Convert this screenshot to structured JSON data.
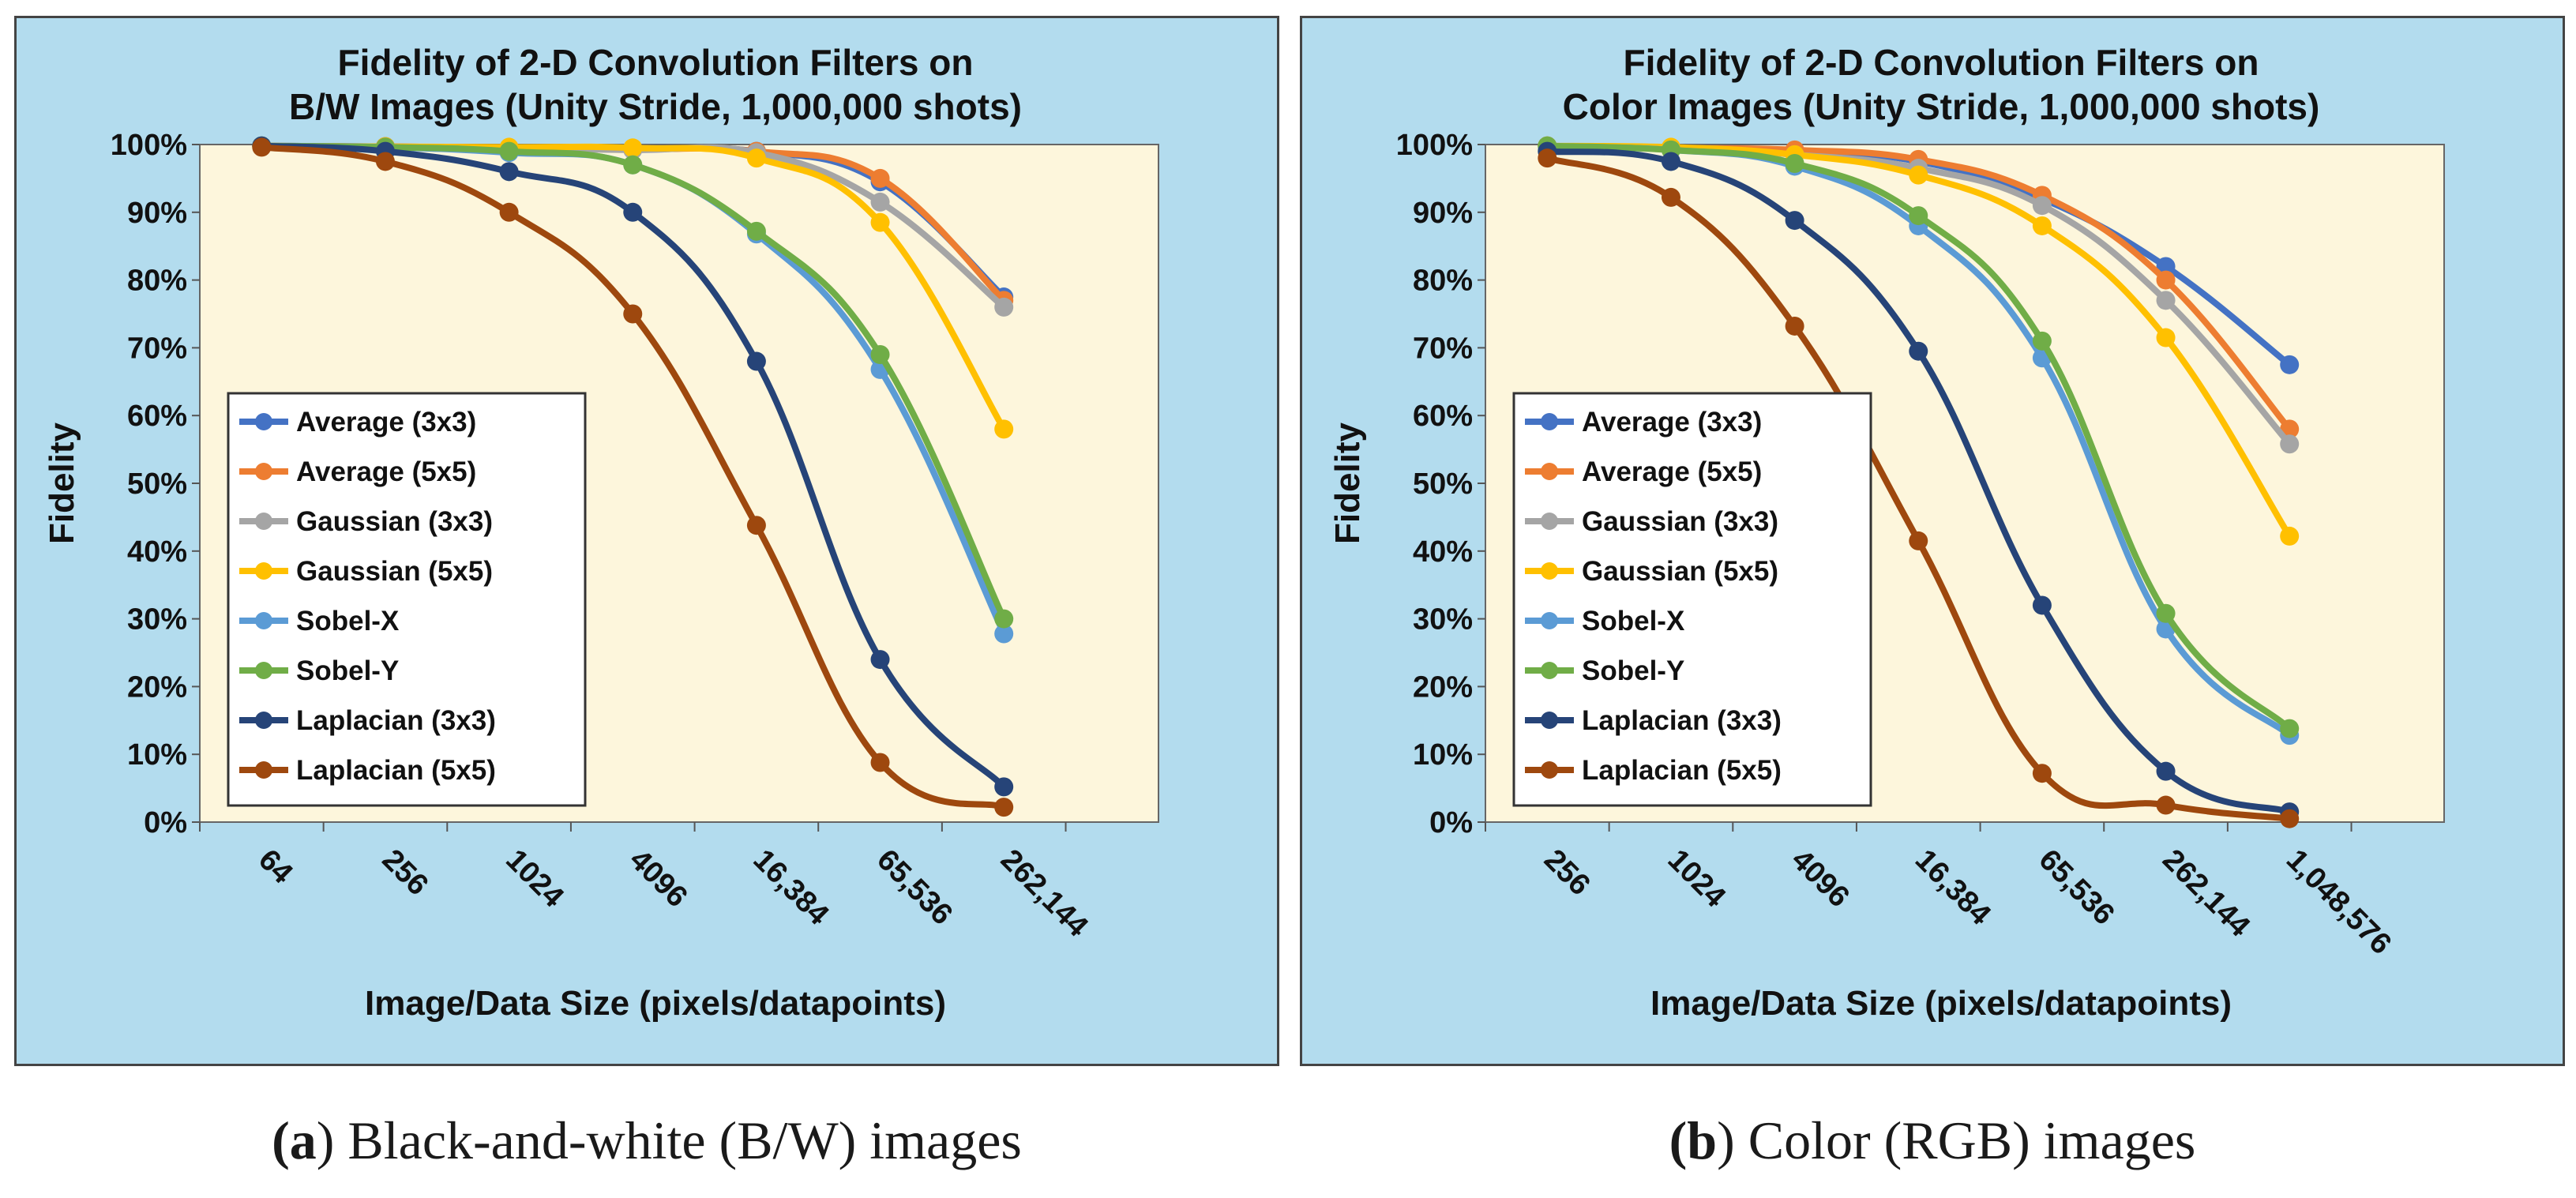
{
  "colors": {
    "Average (3x3)": "#4472c4",
    "Average (5x5)": "#ed7d31",
    "Gaussian (3x3)": "#a5a5a5",
    "Gaussian (5x5)": "#ffc000",
    "Sobel-X": "#5b9bd5",
    "Sobel-Y": "#70ad47",
    "Laplacian (3x3)": "#264478",
    "Laplacian (5x5)": "#9e480e",
    "panel_bg": "#b3dcee",
    "plot_bg": "#fdf6dc"
  },
  "captions": {
    "a_letter": "(a",
    "a_rest": ") Black-and-white (B/W) images",
    "b_letter": "(b",
    "b_rest": ") Color (RGB) images"
  },
  "chart_data": [
    {
      "type": "line",
      "title": [
        "Fidelity of 2-D Convolution Filters on",
        "B/W Images (Unity Stride, 1,000,000 shots)"
      ],
      "xlabel": "Image/Data Size (pixels/datapoints)",
      "ylabel": "Fidelity",
      "ylim": [
        0,
        100
      ],
      "yticks": [
        "0%",
        "10%",
        "20%",
        "30%",
        "40%",
        "50%",
        "60%",
        "70%",
        "80%",
        "90%",
        "100%"
      ],
      "categories": [
        "64",
        "256",
        "1024",
        "4096",
        "16,384",
        "65,536",
        "262,144"
      ],
      "legend_position": "center-left",
      "series": [
        {
          "name": "Average (3x3)",
          "values": [
            99.8,
            99.7,
            99.5,
            99.3,
            99.0,
            94.5,
            77.5
          ]
        },
        {
          "name": "Average (5x5)",
          "values": [
            99.8,
            99.7,
            99.5,
            99.3,
            99.0,
            95.0,
            77.0
          ]
        },
        {
          "name": "Gaussian (3x3)",
          "values": [
            99.8,
            99.6,
            99.4,
            99.2,
            98.8,
            91.5,
            76.0
          ]
        },
        {
          "name": "Gaussian (5x5)",
          "values": [
            99.8,
            99.7,
            99.6,
            99.5,
            98.0,
            88.5,
            58.0
          ]
        },
        {
          "name": "Sobel-X",
          "values": [
            99.8,
            99.6,
            98.8,
            97.0,
            86.8,
            66.8,
            27.8
          ]
        },
        {
          "name": "Sobel-Y",
          "values": [
            99.8,
            99.6,
            99.0,
            97.0,
            87.2,
            69.0,
            30.0
          ]
        },
        {
          "name": "Laplacian (3x3)",
          "values": [
            99.8,
            99.0,
            96.0,
            90.0,
            68.0,
            24.0,
            5.2
          ]
        },
        {
          "name": "Laplacian (5x5)",
          "values": [
            99.6,
            97.5,
            90.0,
            75.0,
            43.8,
            8.8,
            2.2
          ]
        }
      ]
    },
    {
      "type": "line",
      "title": [
        "Fidelity of 2-D Convolution Filters on",
        "Color Images (Unity Stride, 1,000,000 shots)"
      ],
      "xlabel": "Image/Data Size (pixels/datapoints)",
      "ylabel": "Fidelity",
      "ylim": [
        0,
        100
      ],
      "yticks": [
        "0%",
        "10%",
        "20%",
        "30%",
        "40%",
        "50%",
        "60%",
        "70%",
        "80%",
        "90%",
        "100%"
      ],
      "categories": [
        "256",
        "1024",
        "4096",
        "16,384",
        "65,536",
        "262,144",
        "1,048,576"
      ],
      "legend_position": "center-left",
      "series": [
        {
          "name": "Average (3x3)",
          "values": [
            99.8,
            99.5,
            99.0,
            97.5,
            92.0,
            82.0,
            67.5
          ]
        },
        {
          "name": "Average (5x5)",
          "values": [
            99.8,
            99.5,
            99.2,
            97.8,
            92.5,
            80.0,
            58.0
          ]
        },
        {
          "name": "Gaussian (3x3)",
          "values": [
            99.8,
            99.4,
            98.5,
            96.5,
            91.0,
            77.0,
            55.8
          ]
        },
        {
          "name": "Gaussian (5x5)",
          "values": [
            99.8,
            99.6,
            98.5,
            95.5,
            88.0,
            71.5,
            42.2
          ]
        },
        {
          "name": "Sobel-X",
          "values": [
            99.6,
            99.2,
            96.8,
            88.0,
            68.5,
            28.5,
            12.8
          ]
        },
        {
          "name": "Sobel-Y",
          "values": [
            99.8,
            99.2,
            97.2,
            89.5,
            71.0,
            30.8,
            13.8
          ]
        },
        {
          "name": "Laplacian (3x3)",
          "values": [
            99.0,
            97.5,
            88.8,
            69.5,
            32.0,
            7.5,
            1.5
          ]
        },
        {
          "name": "Laplacian (5x5)",
          "values": [
            98.0,
            92.2,
            73.2,
            41.5,
            7.2,
            2.5,
            0.5
          ]
        }
      ]
    }
  ]
}
